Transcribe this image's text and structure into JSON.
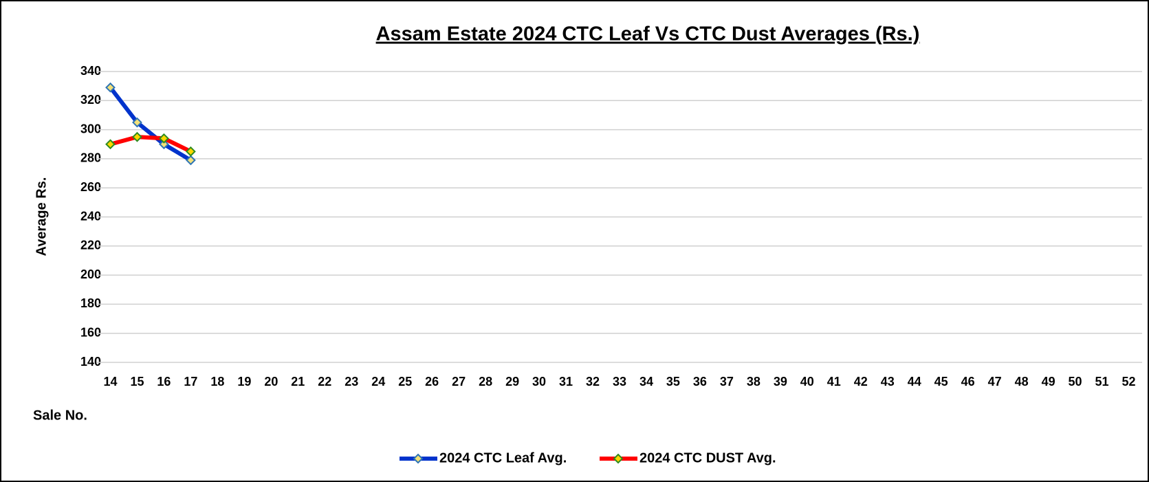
{
  "chart_data": {
    "type": "line",
    "title": "Assam Estate 2024 CTC Leaf Vs CTC Dust Averages (Rs.)",
    "xlabel": "Sale No.",
    "ylabel": "Average Rs.",
    "categories": [
      "14",
      "15",
      "16",
      "17",
      "18",
      "19",
      "20",
      "21",
      "22",
      "23",
      "24",
      "25",
      "26",
      "27",
      "28",
      "29",
      "30",
      "31",
      "32",
      "33",
      "34",
      "35",
      "36",
      "37",
      "38",
      "39",
      "40",
      "41",
      "42",
      "43",
      "44",
      "45",
      "46",
      "47",
      "48",
      "49",
      "50",
      "51",
      "52"
    ],
    "series": [
      {
        "name": "2024 CTC Leaf Avg.",
        "color": "#0033cc",
        "marker_color": "#f2e07a",
        "values": [
          329,
          305,
          290,
          279,
          null,
          null,
          null,
          null,
          null,
          null,
          null,
          null,
          null,
          null,
          null,
          null,
          null,
          null,
          null,
          null,
          null,
          null,
          null,
          null,
          null,
          null,
          null,
          null,
          null,
          null,
          null,
          null,
          null,
          null,
          null,
          null,
          null,
          null,
          null
        ]
      },
      {
        "name": "2024 CTC DUST Avg.",
        "color": "#ff0000",
        "marker_color": "#ffd700",
        "values": [
          290,
          295,
          294,
          285,
          null,
          null,
          null,
          null,
          null,
          null,
          null,
          null,
          null,
          null,
          null,
          null,
          null,
          null,
          null,
          null,
          null,
          null,
          null,
          null,
          null,
          null,
          null,
          null,
          null,
          null,
          null,
          null,
          null,
          null,
          null,
          null,
          null,
          null,
          null
        ]
      }
    ],
    "ylim": [
      140,
      340
    ],
    "yticks": [
      140,
      160,
      180,
      200,
      220,
      240,
      260,
      280,
      300,
      320,
      340
    ],
    "grid": true,
    "legend": "bottom"
  }
}
